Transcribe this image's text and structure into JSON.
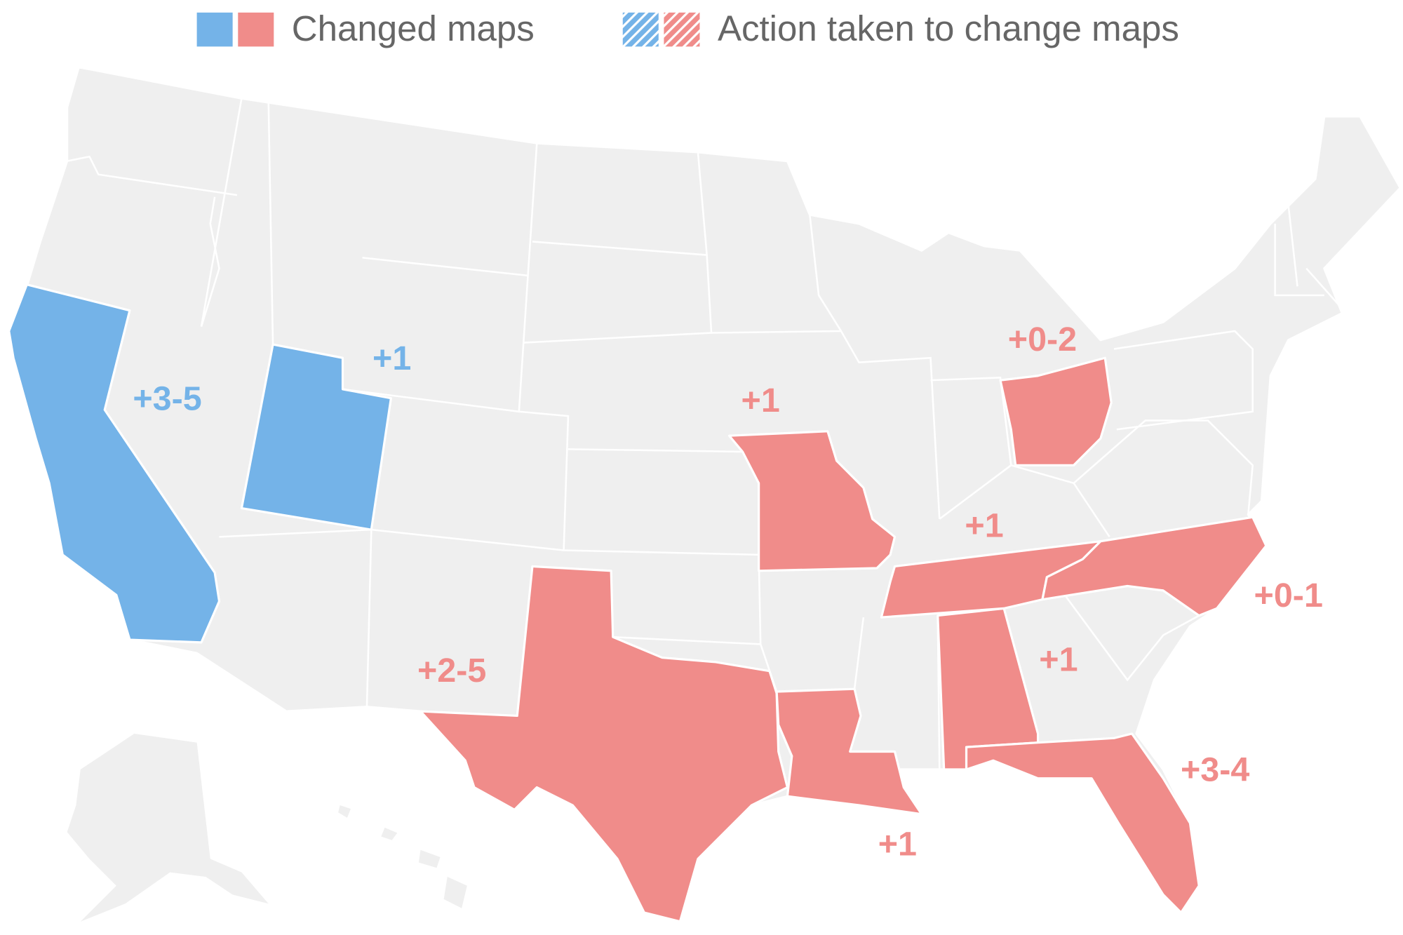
{
  "legend": {
    "items": [
      {
        "label": "Changed maps",
        "colors": [
          "#74b3e8",
          "#f08c8a"
        ],
        "hatched": false
      },
      {
        "label": "Action taken to change maps",
        "colors": [
          "#74b3e8",
          "#f08c8a"
        ],
        "hatched": true
      }
    ]
  },
  "map_labels": [
    {
      "text": "+3-5",
      "color": "#74b3e8"
    },
    {
      "text": "+1",
      "color": "#74b3e8"
    },
    {
      "text": "+0-2",
      "color": "#f08c8a"
    },
    {
      "text": "+1",
      "color": "#f08c8a"
    },
    {
      "text": "+1",
      "color": "#f08c8a"
    },
    {
      "text": "+0-1",
      "color": "#f08c8a"
    },
    {
      "text": "+2-5",
      "color": "#f08c8a"
    },
    {
      "text": "+1",
      "color": "#f08c8a"
    },
    {
      "text": "+3-4",
      "color": "#f08c8a"
    },
    {
      "text": "+1",
      "color": "#f08c8a"
    }
  ]
}
